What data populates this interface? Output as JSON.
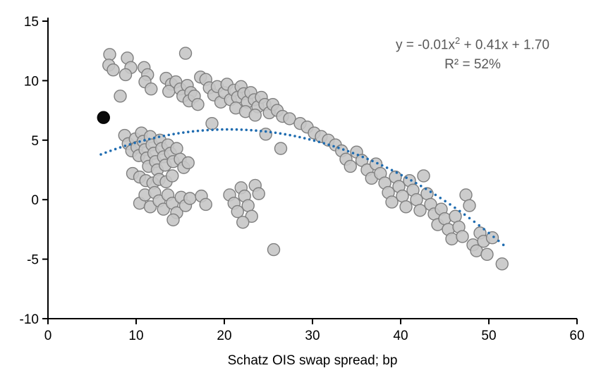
{
  "chart_data": {
    "type": "scatter",
    "title": "",
    "xlabel": "Schatz OIS swap spread; bp",
    "ylabel": "",
    "xlim": [
      0,
      60
    ],
    "ylim": [
      -10,
      15
    ],
    "xticks": [
      0,
      10,
      20,
      30,
      40,
      50,
      60
    ],
    "yticks": [
      -10,
      -5,
      0,
      5,
      10,
      15
    ],
    "grid": false,
    "legend": "none",
    "annotation": {
      "line1_pre": "y = -0.01x",
      "line1_sup": "2",
      "line1_post": " + 0.41x + 1.70",
      "line2": "R² = 52%"
    },
    "trend": {
      "type": "quadratic",
      "a": -0.01,
      "b": 0.41,
      "c": 1.7,
      "x_range": [
        6,
        52
      ],
      "color": "#1f6cb0",
      "style": "dotted"
    },
    "series": [
      {
        "name": "observations",
        "marker": {
          "fill": "#c6c6c6",
          "stroke": "#7f7f7f",
          "radius": 8.5,
          "opacity": 0.9
        },
        "points": [
          [
            7.0,
            12.2
          ],
          [
            6.9,
            11.3
          ],
          [
            7.4,
            10.9
          ],
          [
            8.2,
            8.7
          ],
          [
            9.0,
            11.9
          ],
          [
            9.4,
            11.1
          ],
          [
            8.8,
            10.5
          ],
          [
            10.9,
            11.1
          ],
          [
            11.3,
            10.5
          ],
          [
            11.0,
            9.9
          ],
          [
            11.7,
            9.3
          ],
          [
            13.4,
            10.2
          ],
          [
            14.0,
            9.7
          ],
          [
            13.7,
            9.1
          ],
          [
            14.5,
            9.9
          ],
          [
            15.0,
            9.3
          ],
          [
            15.3,
            8.7
          ],
          [
            15.6,
            12.3
          ],
          [
            15.8,
            9.6
          ],
          [
            16.2,
            9.0
          ],
          [
            16.0,
            8.3
          ],
          [
            16.6,
            8.7
          ],
          [
            17.0,
            8.0
          ],
          [
            17.3,
            10.3
          ],
          [
            17.9,
            10.1
          ],
          [
            18.3,
            9.4
          ],
          [
            18.8,
            8.8
          ],
          [
            19.2,
            9.5
          ],
          [
            19.6,
            8.2
          ],
          [
            20.0,
            9.0
          ],
          [
            20.3,
            9.7
          ],
          [
            20.7,
            8.4
          ],
          [
            21.1,
            9.2
          ],
          [
            21.5,
            8.6
          ],
          [
            21.9,
            9.5
          ],
          [
            22.2,
            8.9
          ],
          [
            22.6,
            8.2
          ],
          [
            23.0,
            9.0
          ],
          [
            23.4,
            8.4
          ],
          [
            23.8,
            7.8
          ],
          [
            24.2,
            8.6
          ],
          [
            24.6,
            8.0
          ],
          [
            25.1,
            7.3
          ],
          [
            25.5,
            8.0
          ],
          [
            26.0,
            7.5
          ],
          [
            26.6,
            7.0
          ],
          [
            21.3,
            7.7
          ],
          [
            22.4,
            7.4
          ],
          [
            23.5,
            7.1
          ],
          [
            18.6,
            6.4
          ],
          [
            24.7,
            5.5
          ],
          [
            27.4,
            6.8
          ],
          [
            8.7,
            5.4
          ],
          [
            9.1,
            4.7
          ],
          [
            9.5,
            4.1
          ],
          [
            9.9,
            5.1
          ],
          [
            10.1,
            4.4
          ],
          [
            10.3,
            3.7
          ],
          [
            10.6,
            5.6
          ],
          [
            10.8,
            4.9
          ],
          [
            11.0,
            4.2
          ],
          [
            11.2,
            3.5
          ],
          [
            11.4,
            2.8
          ],
          [
            11.6,
            5.3
          ],
          [
            11.8,
            4.6
          ],
          [
            12.0,
            3.9
          ],
          [
            12.2,
            3.2
          ],
          [
            12.4,
            2.5
          ],
          [
            12.7,
            5.0
          ],
          [
            12.9,
            4.3
          ],
          [
            13.1,
            3.6
          ],
          [
            13.3,
            2.9
          ],
          [
            13.6,
            4.6
          ],
          [
            13.9,
            3.9
          ],
          [
            14.2,
            3.2
          ],
          [
            14.6,
            4.3
          ],
          [
            15.0,
            3.4
          ],
          [
            15.4,
            2.7
          ],
          [
            15.9,
            3.1
          ],
          [
            9.6,
            2.2
          ],
          [
            10.4,
            1.9
          ],
          [
            11.1,
            1.6
          ],
          [
            11.9,
            1.4
          ],
          [
            12.6,
            1.7
          ],
          [
            13.4,
            1.5
          ],
          [
            14.1,
            2.0
          ],
          [
            10.4,
            -0.3
          ],
          [
            11.0,
            0.4
          ],
          [
            11.6,
            -0.6
          ],
          [
            12.1,
            0.6
          ],
          [
            12.6,
            -0.1
          ],
          [
            13.1,
            -0.8
          ],
          [
            13.6,
            0.4
          ],
          [
            14.1,
            -0.3
          ],
          [
            14.6,
            -1.1
          ],
          [
            15.1,
            0.2
          ],
          [
            15.6,
            -0.5
          ],
          [
            16.1,
            0.1
          ],
          [
            14.2,
            -1.7
          ],
          [
            17.4,
            0.3
          ],
          [
            17.9,
            -0.4
          ],
          [
            20.6,
            0.4
          ],
          [
            21.1,
            -0.3
          ],
          [
            21.5,
            -1.0
          ],
          [
            21.9,
            1.0
          ],
          [
            22.3,
            0.3
          ],
          [
            22.7,
            -0.5
          ],
          [
            23.1,
            -1.4
          ],
          [
            23.5,
            1.2
          ],
          [
            23.9,
            0.5
          ],
          [
            22.1,
            -1.9
          ],
          [
            25.6,
            -4.2
          ],
          [
            26.4,
            4.3
          ],
          [
            28.6,
            6.4
          ],
          [
            29.4,
            6.1
          ],
          [
            30.2,
            5.6
          ],
          [
            31.0,
            5.3
          ],
          [
            31.8,
            5.0
          ],
          [
            32.6,
            4.6
          ],
          [
            33.3,
            4.1
          ],
          [
            33.8,
            3.4
          ],
          [
            34.3,
            2.8
          ],
          [
            35.0,
            4.0
          ],
          [
            35.6,
            3.3
          ],
          [
            36.2,
            2.5
          ],
          [
            36.7,
            1.8
          ],
          [
            37.2,
            3.0
          ],
          [
            37.7,
            2.2
          ],
          [
            38.2,
            1.4
          ],
          [
            38.6,
            0.6
          ],
          [
            39.0,
            -0.2
          ],
          [
            39.4,
            1.9
          ],
          [
            39.8,
            1.1
          ],
          [
            40.2,
            0.3
          ],
          [
            40.6,
            -0.6
          ],
          [
            41.0,
            1.6
          ],
          [
            41.4,
            0.8
          ],
          [
            41.8,
            0.0
          ],
          [
            42.2,
            -0.9
          ],
          [
            42.6,
            2.0
          ],
          [
            43.0,
            0.5
          ],
          [
            43.4,
            -0.4
          ],
          [
            43.8,
            -1.2
          ],
          [
            44.2,
            -2.1
          ],
          [
            44.6,
            -0.8
          ],
          [
            45.0,
            -1.6
          ],
          [
            45.4,
            -2.5
          ],
          [
            45.8,
            -3.3
          ],
          [
            46.2,
            -1.4
          ],
          [
            46.6,
            -2.3
          ],
          [
            47.0,
            -3.1
          ],
          [
            47.4,
            0.4
          ],
          [
            47.8,
            -0.5
          ],
          [
            48.2,
            -3.8
          ],
          [
            48.6,
            -4.3
          ],
          [
            49.0,
            -2.8
          ],
          [
            49.4,
            -3.5
          ],
          [
            49.8,
            -4.6
          ],
          [
            50.4,
            -3.2
          ],
          [
            51.5,
            -5.4
          ]
        ]
      },
      {
        "name": "highlight",
        "marker": {
          "fill": "#0a0a0a",
          "stroke": "#000000",
          "radius": 8.5,
          "opacity": 1
        },
        "points": [
          [
            6.3,
            6.9
          ]
        ]
      }
    ]
  }
}
